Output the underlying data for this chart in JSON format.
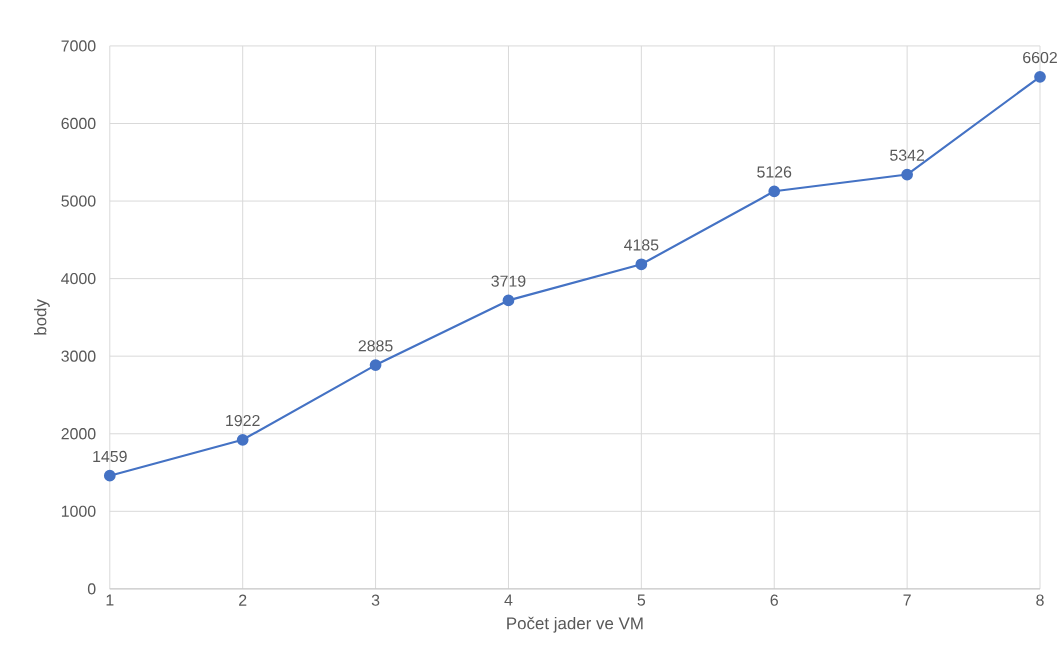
{
  "chart_data": {
    "type": "line",
    "xlabel": "Počet jader ve VM",
    "ylabel": "body",
    "x": [
      1,
      2,
      3,
      4,
      5,
      6,
      7,
      8
    ],
    "values": [
      1459,
      1922,
      2885,
      3719,
      4185,
      5126,
      5342,
      6602
    ],
    "color": "#4472c4",
    "marker": "circle",
    "line_style": "solid",
    "data_labels": true,
    "grid": true,
    "xlim": [
      1,
      8
    ],
    "xticks": [
      1,
      2,
      3,
      4,
      5,
      6,
      7,
      8
    ],
    "ylim": [
      0,
      7000
    ],
    "yticks": [
      0,
      1000,
      2000,
      3000,
      4000,
      5000,
      6000,
      7000
    ]
  }
}
